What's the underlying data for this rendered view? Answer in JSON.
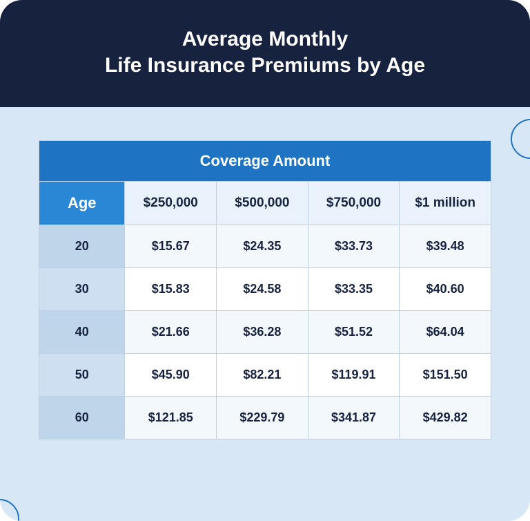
{
  "colors": {
    "header_bg": "#17223f",
    "body_bg": "#d7e7f6",
    "title_color": "#ffffff",
    "table_header_bg": "#1e74c3",
    "table_header_text": "#ffffff",
    "subheader_bg": "#e9f2fa",
    "subheader_text": "#17223f",
    "age_head_bg": "#2a87d6",
    "age_head_text": "#ffffff",
    "age_col_bg": "#bfd6ea",
    "age_col_alt_bg": "#cddff0",
    "cell_bg": "#f3f8fc",
    "cell_alt_bg": "#ffffff",
    "cell_text": "#17223f",
    "border": "#bfd0e2",
    "arc_stroke": "#1e74c3"
  },
  "typography": {
    "title_fontsize": 30,
    "table_header_fontsize": 22,
    "subheader_fontsize": 19,
    "age_head_fontsize": 22,
    "cell_fontsize": 18
  },
  "title_line1": "Average Monthly",
  "title_line2": "Life Insurance Premiums by Age",
  "table": {
    "top_header": "Coverage Amount",
    "age_label": "Age",
    "columns": [
      "$250,000",
      "$500,000",
      "$750,000",
      "$1 million"
    ],
    "col_widths_pct": [
      19,
      20.25,
      20.25,
      20.25,
      20.25
    ],
    "rows": [
      {
        "age": "20",
        "values": [
          "$15.67",
          "$24.35",
          "$33.73",
          "$39.48"
        ]
      },
      {
        "age": "30",
        "values": [
          "$15.83",
          "$24.58",
          "$33.35",
          "$40.60"
        ]
      },
      {
        "age": "40",
        "values": [
          "$21.66",
          "$36.28",
          "$51.52",
          "$64.04"
        ]
      },
      {
        "age": "50",
        "values": [
          "$45.90",
          "$82.21",
          "$119.91",
          "$151.50"
        ]
      },
      {
        "age": "60",
        "values": [
          "$121.85",
          "$229.79",
          "$341.87",
          "$429.82"
        ]
      }
    ]
  }
}
